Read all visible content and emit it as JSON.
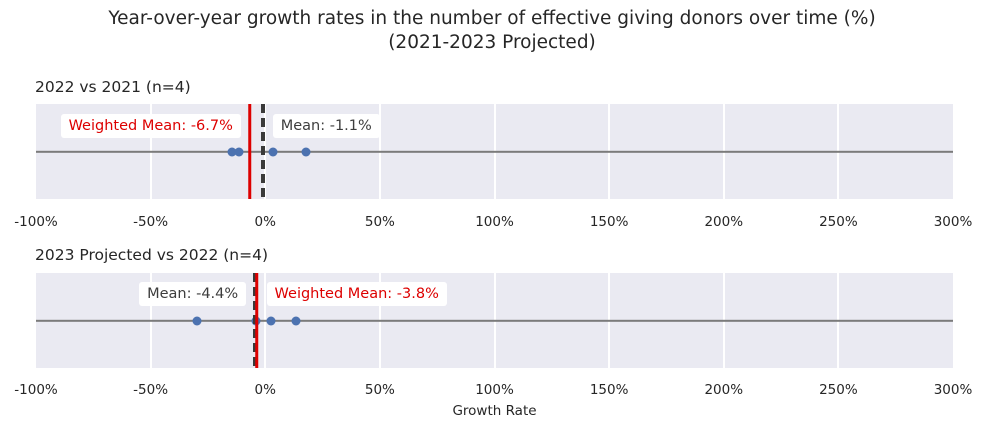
{
  "title": {
    "line1": "Year-over-year growth rates in the number of effective giving donors over time (%)",
    "line2": "(2021-2023 Projected)"
  },
  "x_axis": {
    "label": "Growth Rate",
    "min": -100,
    "max": 300,
    "ticks": [
      -100,
      -50,
      0,
      50,
      100,
      150,
      200,
      250,
      300
    ],
    "tick_labels": [
      "-100%",
      "-50%",
      "0%",
      "50%",
      "100%",
      "150%",
      "200%",
      "250%",
      "300%"
    ]
  },
  "colors": {
    "panel_bg": "#eaeaf2",
    "gridline": "#ffffff",
    "baseline": "#7b7b7b",
    "point": "#4c72b0",
    "weighted_mean_line": "#dd0000",
    "mean_line": "#3a3a3a",
    "label_bg": "#ffffff",
    "mean_text": "#3d3d3d",
    "weighted_mean_text": "#dd0000",
    "text": "#262626"
  },
  "chart_data": [
    {
      "type": "scatter",
      "panel_title": "2022 vs 2021 (n=4)",
      "n": 4,
      "xlim": [
        -100,
        300
      ],
      "x_values_pct": [
        -14.5,
        -11.3,
        3.5,
        17.9
      ],
      "mean_pct": -1.1,
      "weighted_mean_pct": -6.7,
      "mean_label": "Mean: -1.1%",
      "weighted_mean_label": "Weighted Mean: -6.7%",
      "mean_label_side": "right-of-line",
      "weighted_mean_label_side": "left-of-line"
    },
    {
      "type": "scatter",
      "panel_title": "2023 Projected vs 2022 (n=4)",
      "n": 4,
      "xlim": [
        -100,
        300
      ],
      "x_values_pct": [
        -29.7,
        -4.0,
        2.5,
        13.6
      ],
      "mean_pct": -4.4,
      "weighted_mean_pct": -3.8,
      "mean_label": "Mean: -4.4%",
      "weighted_mean_label": "Weighted Mean: -3.8%",
      "mean_label_side": "left-of-line",
      "weighted_mean_label_side": "right-of-line"
    }
  ]
}
